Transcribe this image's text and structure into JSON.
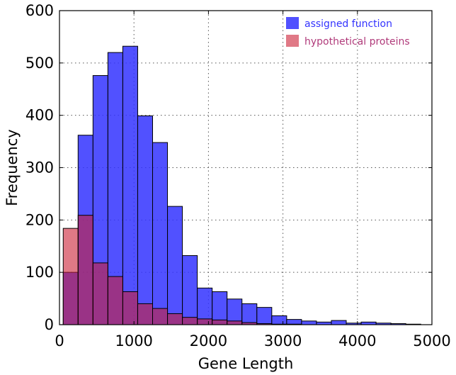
{
  "chart_data": {
    "type": "bar",
    "xlabel": "Gene Length",
    "ylabel": "Frequency",
    "xlim": [
      0,
      5000
    ],
    "ylim": [
      0,
      600
    ],
    "xticks": [
      0,
      1000,
      2000,
      3000,
      4000,
      5000
    ],
    "yticks": [
      0,
      100,
      200,
      300,
      400,
      500,
      600
    ],
    "grid": true,
    "legend_placement": "top-right",
    "bin_width": 200,
    "bin_starts": [
      50,
      250,
      450,
      650,
      850,
      1050,
      1250,
      1450,
      1650,
      1850,
      2050,
      2250,
      2450,
      2650,
      2850,
      3050,
      3250,
      3450,
      3650,
      3850,
      4050,
      4250,
      4450,
      4650
    ],
    "series": [
      {
        "name": "assigned function",
        "color": "#3333ff",
        "opacity": 0.85,
        "values": [
          100,
          362,
          476,
          520,
          532,
          399,
          348,
          226,
          132,
          70,
          63,
          49,
          40,
          33,
          17,
          10,
          7,
          5,
          8,
          3,
          5,
          3,
          2,
          1
        ]
      },
      {
        "name": "hypothetical proteins",
        "color": "#cc1f35",
        "opacity": 0.6,
        "values": [
          184,
          209,
          118,
          92,
          63,
          40,
          31,
          21,
          14,
          11,
          9,
          7,
          4,
          2,
          1,
          1,
          0,
          0,
          0,
          0,
          0,
          0,
          0,
          0
        ]
      }
    ]
  }
}
